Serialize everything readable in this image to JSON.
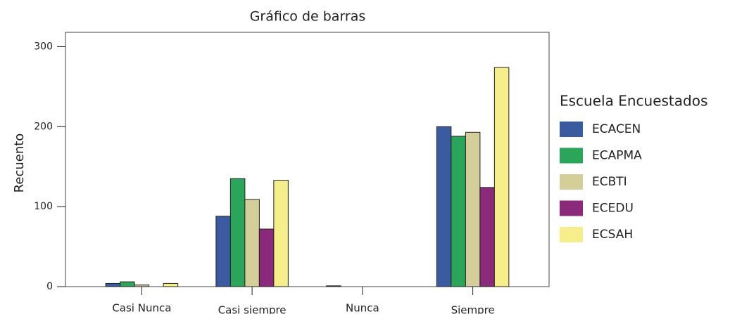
{
  "chart_data": {
    "type": "bar",
    "title": "Gráfico de barras",
    "y_label": "Recuento",
    "legend_title": "Escuela Encuestados",
    "legend_position": "right",
    "categories": [
      "Casi Nunca",
      "Casi siempre",
      "Nunca",
      "Siempre"
    ],
    "series": [
      {
        "name": "ECACEN",
        "color": "#3a5ba0",
        "values": [
          4,
          88,
          1,
          200
        ]
      },
      {
        "name": "ECAPMA",
        "color": "#2ba55a",
        "values": [
          6,
          135,
          0,
          188
        ]
      },
      {
        "name": "ECBTI",
        "color": "#d4cf9a",
        "values": [
          2,
          109,
          0,
          193
        ]
      },
      {
        "name": "ECEDU",
        "color": "#8b2a7a",
        "values": [
          0,
          72,
          0,
          124
        ]
      },
      {
        "name": "ECSAH",
        "color": "#f6ee8a",
        "values": [
          4,
          133,
          0,
          274
        ]
      }
    ],
    "ylim": [
      0,
      318
    ],
    "yticks": [
      0,
      100,
      200,
      300
    ],
    "grid": false
  }
}
